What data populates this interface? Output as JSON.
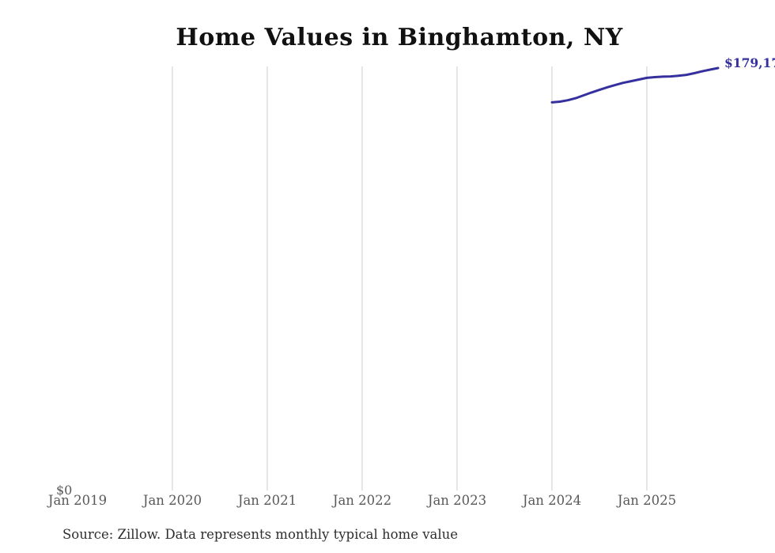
{
  "title": "Home Values in Binghamton, NY",
  "source_note": "Source: Zillow. Data represents monthly typical home value",
  "y_zero_label": "$0",
  "end_value_label": "$179,17",
  "colors": {
    "line": "#36309e",
    "grid": "#cccccc",
    "tick_text": "#595959",
    "title_text": "#111111",
    "source_text": "#2e2e2e"
  },
  "chart_data": {
    "type": "line",
    "title": "Home Values in Binghamton, NY",
    "xlabel": "",
    "ylabel": "",
    "ylim": [
      0,
      179170
    ],
    "grid": "vertical-only",
    "x_tick_labels": [
      "Jan 2019",
      "Jan 2020",
      "Jan 2021",
      "Jan 2022",
      "Jan 2023",
      "Jan 2024",
      "Jan 2025"
    ],
    "x_tick_years": [
      2019,
      2020,
      2021,
      2022,
      2023,
      2024,
      2025
    ],
    "gridline_years": [
      2020,
      2021,
      2022,
      2023,
      2024,
      2025
    ],
    "y_tick_labels": [
      "$0"
    ],
    "series": [
      {
        "name": "Monthly typical home value",
        "x": [
          "Jan 2024",
          "Feb 2024",
          "Mar 2024",
          "Apr 2024",
          "May 2024",
          "Jun 2024",
          "Jul 2024",
          "Aug 2024",
          "Sep 2024",
          "Oct 2024",
          "Nov 2024",
          "Dec 2024",
          "Jan 2025",
          "Feb 2025",
          "Mar 2025",
          "Apr 2025",
          "May 2025",
          "Jun 2025",
          "Jul 2025",
          "Aug 2025",
          "Sep 2025",
          "Oct 2025"
        ],
        "values": [
          164600,
          164900,
          165500,
          166400,
          167600,
          168800,
          169900,
          171000,
          172000,
          172900,
          173600,
          174300,
          175000,
          175300,
          175500,
          175600,
          175900,
          176300,
          177000,
          177800,
          178500,
          179170
        ],
        "end_label_displayed": "$179,17"
      }
    ],
    "annotations": [
      "End-of-series value label clipped at right edge of image"
    ]
  }
}
